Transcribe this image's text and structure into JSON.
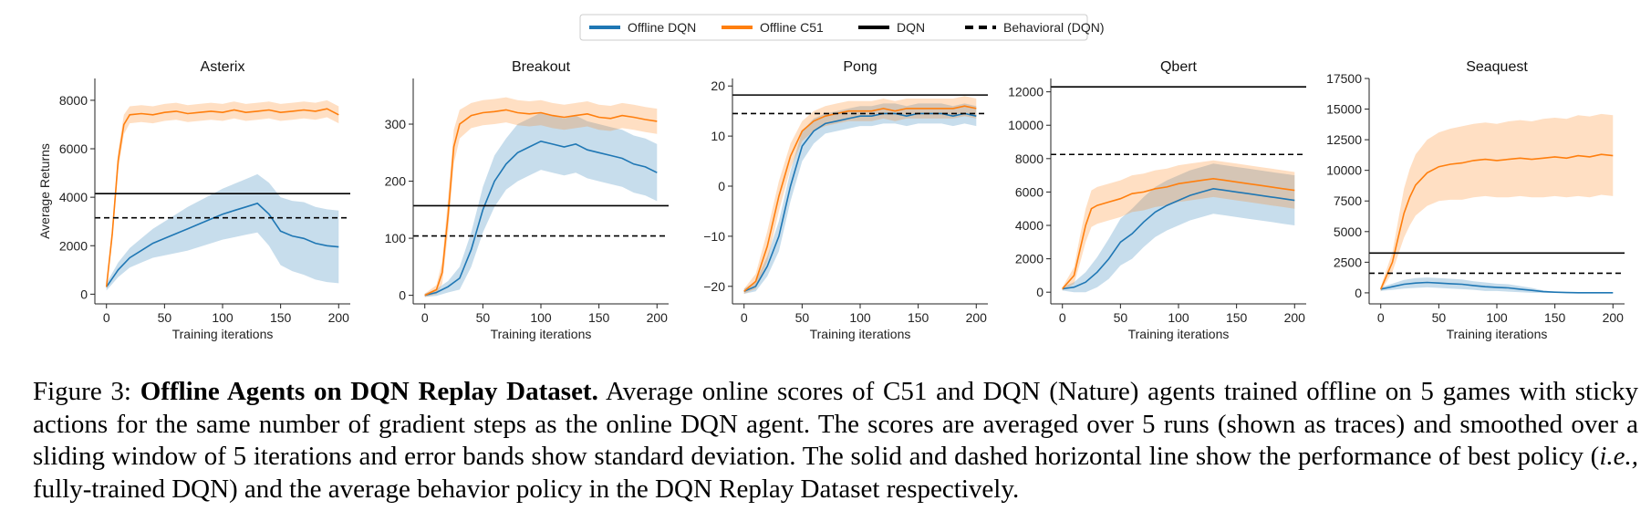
{
  "legend": {
    "entries": [
      {
        "label": "Offline DQN",
        "color": "#1f77b4",
        "style": "solid"
      },
      {
        "label": "Offline C51",
        "color": "#ff7f0e",
        "style": "solid"
      },
      {
        "label": "DQN",
        "color": "#000000",
        "style": "solid"
      },
      {
        "label": "Behavioral (DQN)",
        "color": "#000000",
        "style": "dashed"
      }
    ]
  },
  "caption": {
    "label": "Figure 3:",
    "title": "Offline Agents on DQN Replay Dataset.",
    "body_part1": "Average online scores of C51 and DQN (Nature) agents trained offline on 5 games with sticky actions for the same number of gradient steps as the online DQN agent. The scores are averaged over 5 runs (shown as traces) and smoothed over a sliding window of 5 iterations and error bands show standard deviation. The solid and dashed horizontal line show the performance of best policy (",
    "body_italic": "i.e.,",
    "body_part2": "fully-trained DQN) and the average behavior policy in the DQN Replay Dataset respectively."
  },
  "chart_data": [
    {
      "type": "line",
      "title": "Asterix",
      "xlabel": "Training iterations",
      "ylabel": "Average Returns",
      "xlim": [
        -10,
        210
      ],
      "ylim": [
        -400,
        8900
      ],
      "xticks": [
        0,
        50,
        100,
        150,
        200
      ],
      "yticks": [
        0,
        2000,
        4000,
        6000,
        8000
      ],
      "grid": false,
      "hlines": [
        {
          "name": "DQN",
          "y": 4150,
          "style": "solid"
        },
        {
          "name": "Behavioral (DQN)",
          "y": 3150,
          "style": "dashed"
        }
      ],
      "series": [
        {
          "name": "Offline DQN",
          "color": "#1f77b4",
          "x": [
            0,
            10,
            20,
            30,
            40,
            50,
            60,
            70,
            80,
            90,
            100,
            110,
            120,
            130,
            140,
            150,
            160,
            170,
            180,
            190,
            200
          ],
          "y": [
            300,
            1000,
            1500,
            1800,
            2100,
            2300,
            2500,
            2700,
            2900,
            3100,
            3300,
            3450,
            3600,
            3750,
            3300,
            2600,
            2400,
            2300,
            2100,
            2000,
            1950
          ],
          "band": [
            150,
            300,
            400,
            500,
            600,
            700,
            800,
            900,
            950,
            1000,
            1050,
            1100,
            1150,
            1200,
            1300,
            1400,
            1450,
            1500,
            1500,
            1500,
            1500
          ]
        },
        {
          "name": "Offline C51",
          "color": "#ff7f0e",
          "x": [
            0,
            5,
            10,
            15,
            20,
            30,
            40,
            50,
            60,
            70,
            80,
            90,
            100,
            110,
            120,
            130,
            140,
            150,
            160,
            170,
            180,
            190,
            200
          ],
          "y": [
            300,
            2500,
            5500,
            7000,
            7400,
            7450,
            7400,
            7500,
            7550,
            7450,
            7500,
            7550,
            7500,
            7600,
            7500,
            7550,
            7600,
            7500,
            7550,
            7600,
            7550,
            7650,
            7400
          ],
          "band": [
            100,
            300,
            400,
            400,
            350,
            350,
            350,
            350,
            350,
            350,
            350,
            350,
            350,
            350,
            350,
            350,
            350,
            350,
            350,
            350,
            350,
            350,
            350
          ]
        }
      ]
    },
    {
      "type": "line",
      "title": "Breakout",
      "xlabel": "Training iterations",
      "ylabel": "",
      "xlim": [
        -10,
        210
      ],
      "ylim": [
        -15,
        380
      ],
      "xticks": [
        0,
        50,
        100,
        150,
        200
      ],
      "yticks": [
        0,
        100,
        200,
        300
      ],
      "grid": false,
      "hlines": [
        {
          "name": "DQN",
          "y": 157,
          "style": "solid"
        },
        {
          "name": "Behavioral (DQN)",
          "y": 104,
          "style": "dashed"
        }
      ],
      "series": [
        {
          "name": "Offline DQN",
          "color": "#1f77b4",
          "x": [
            0,
            10,
            20,
            30,
            40,
            50,
            60,
            70,
            80,
            90,
            100,
            110,
            120,
            130,
            140,
            150,
            160,
            170,
            180,
            190,
            200
          ],
          "y": [
            0,
            5,
            15,
            30,
            80,
            150,
            200,
            230,
            250,
            260,
            270,
            265,
            260,
            265,
            255,
            250,
            245,
            240,
            230,
            225,
            215
          ],
          "band": [
            3,
            6,
            10,
            20,
            30,
            40,
            45,
            45,
            50,
            50,
            50,
            50,
            50,
            50,
            50,
            50,
            50,
            50,
            50,
            50,
            50
          ]
        },
        {
          "name": "Offline C51",
          "color": "#ff7f0e",
          "x": [
            0,
            10,
            15,
            20,
            25,
            30,
            40,
            50,
            60,
            70,
            80,
            90,
            100,
            110,
            120,
            130,
            140,
            150,
            160,
            170,
            180,
            190,
            200
          ],
          "y": [
            0,
            10,
            40,
            140,
            260,
            300,
            315,
            320,
            322,
            325,
            320,
            318,
            320,
            315,
            312,
            315,
            318,
            312,
            310,
            315,
            312,
            308,
            305
          ],
          "band": [
            3,
            8,
            20,
            30,
            30,
            25,
            22,
            22,
            22,
            22,
            22,
            22,
            22,
            22,
            22,
            22,
            22,
            22,
            22,
            22,
            22,
            22,
            22
          ]
        }
      ]
    },
    {
      "type": "line",
      "title": "Pong",
      "xlabel": "Training iterations",
      "ylabel": "",
      "xlim": [
        -10,
        210
      ],
      "ylim": [
        -23.5,
        21.5
      ],
      "xticks": [
        0,
        50,
        100,
        150,
        200
      ],
      "yticks": [
        -20,
        -10,
        0,
        10,
        20
      ],
      "grid": false,
      "hlines": [
        {
          "name": "DQN",
          "y": 18.2,
          "style": "solid"
        },
        {
          "name": "Behavioral (DQN)",
          "y": 14.5,
          "style": "dashed"
        }
      ],
      "series": [
        {
          "name": "Offline DQN",
          "color": "#1f77b4",
          "x": [
            0,
            10,
            20,
            30,
            40,
            50,
            60,
            70,
            80,
            90,
            100,
            110,
            120,
            130,
            140,
            150,
            160,
            170,
            180,
            190,
            200
          ],
          "y": [
            -21,
            -20,
            -16,
            -10,
            0,
            8,
            11,
            12.5,
            13,
            13.5,
            14,
            14,
            14.5,
            14.5,
            14,
            14.5,
            14.5,
            14.5,
            14,
            14.5,
            14
          ],
          "band": [
            0.5,
            1,
            2,
            3,
            3,
            3,
            2.5,
            2,
            2,
            2,
            2,
            2,
            2,
            2,
            2,
            2,
            2,
            2,
            2,
            2,
            2
          ]
        },
        {
          "name": "Offline C51",
          "color": "#ff7f0e",
          "x": [
            0,
            10,
            20,
            30,
            40,
            50,
            60,
            70,
            80,
            90,
            100,
            110,
            120,
            130,
            140,
            150,
            160,
            170,
            180,
            190,
            200
          ],
          "y": [
            -21,
            -19,
            -12,
            -2,
            6,
            11,
            13,
            14,
            14.5,
            15,
            15,
            15,
            15.5,
            15,
            15.5,
            15.5,
            15.5,
            15.5,
            15.5,
            16,
            15.5
          ],
          "band": [
            0.5,
            1.5,
            3,
            3,
            2.5,
            2,
            2,
            2,
            2,
            2,
            2,
            2,
            2,
            2,
            2,
            2,
            2,
            2,
            2,
            2,
            2
          ]
        }
      ]
    },
    {
      "type": "line",
      "title": "Qbert",
      "xlabel": "Training iterations",
      "ylabel": "",
      "xlim": [
        -10,
        210
      ],
      "ylim": [
        -700,
        12800
      ],
      "xticks": [
        0,
        50,
        100,
        150,
        200
      ],
      "yticks": [
        0,
        2000,
        4000,
        6000,
        8000,
        10000,
        12000
      ],
      "grid": false,
      "hlines": [
        {
          "name": "DQN",
          "y": 12300,
          "style": "solid"
        },
        {
          "name": "Behavioral (DQN)",
          "y": 8250,
          "style": "dashed"
        }
      ],
      "series": [
        {
          "name": "Offline DQN",
          "color": "#1f77b4",
          "x": [
            0,
            10,
            20,
            30,
            40,
            50,
            60,
            70,
            80,
            90,
            100,
            110,
            120,
            130,
            140,
            150,
            160,
            170,
            180,
            190,
            200
          ],
          "y": [
            200,
            300,
            600,
            1200,
            2000,
            3000,
            3500,
            4200,
            4800,
            5200,
            5500,
            5800,
            6000,
            6200,
            6100,
            6000,
            5900,
            5800,
            5700,
            5600,
            5500
          ],
          "band": [
            100,
            300,
            600,
            900,
            1200,
            1400,
            1500,
            1500,
            1500,
            1500,
            1500,
            1500,
            1500,
            1500,
            1500,
            1500,
            1500,
            1500,
            1500,
            1500,
            1500
          ]
        },
        {
          "name": "Offline C51",
          "color": "#ff7f0e",
          "x": [
            0,
            10,
            15,
            20,
            25,
            30,
            40,
            50,
            60,
            70,
            80,
            90,
            100,
            110,
            120,
            130,
            140,
            150,
            160,
            170,
            180,
            190,
            200
          ],
          "y": [
            200,
            1000,
            2500,
            4000,
            5000,
            5200,
            5400,
            5600,
            5900,
            6000,
            6200,
            6300,
            6500,
            6600,
            6700,
            6800,
            6700,
            6600,
            6500,
            6400,
            6300,
            6200,
            6100
          ],
          "band": [
            100,
            500,
            800,
            1000,
            1100,
            1100,
            1100,
            1100,
            1100,
            1100,
            1100,
            1100,
            1100,
            1100,
            1100,
            1100,
            1100,
            1100,
            1100,
            1100,
            1100,
            1100,
            1100
          ]
        }
      ]
    },
    {
      "type": "line",
      "title": "Seaquest",
      "xlabel": "Training iterations",
      "ylabel": "",
      "xlim": [
        -10,
        210
      ],
      "ylim": [
        -900,
        17500
      ],
      "xticks": [
        0,
        50,
        100,
        150,
        200
      ],
      "yticks": [
        0,
        2500,
        5000,
        7500,
        10000,
        12500,
        15000,
        17500
      ],
      "grid": false,
      "hlines": [
        {
          "name": "DQN",
          "y": 3250,
          "style": "solid"
        },
        {
          "name": "Behavioral (DQN)",
          "y": 1600,
          "style": "dashed"
        }
      ],
      "series": [
        {
          "name": "Offline DQN",
          "color": "#1f77b4",
          "x": [
            0,
            10,
            20,
            30,
            40,
            50,
            60,
            70,
            80,
            90,
            100,
            110,
            120,
            130,
            140,
            150,
            160,
            170,
            180,
            190,
            200
          ],
          "y": [
            300,
            500,
            700,
            800,
            850,
            800,
            750,
            700,
            600,
            500,
            450,
            400,
            300,
            200,
            100,
            50,
            20,
            10,
            10,
            10,
            10
          ],
          "band": [
            150,
            250,
            350,
            400,
            400,
            400,
            400,
            400,
            350,
            350,
            300,
            300,
            250,
            200,
            100,
            50,
            30,
            20,
            20,
            20,
            20
          ]
        },
        {
          "name": "Offline C51",
          "color": "#ff7f0e",
          "x": [
            0,
            10,
            15,
            20,
            25,
            30,
            40,
            50,
            60,
            70,
            80,
            90,
            100,
            110,
            120,
            130,
            140,
            150,
            160,
            170,
            180,
            190,
            200
          ],
          "y": [
            300,
            2500,
            4500,
            6500,
            7800,
            8800,
            9800,
            10300,
            10500,
            10600,
            10800,
            10900,
            10800,
            10900,
            11000,
            10900,
            11000,
            11100,
            11000,
            11200,
            11100,
            11300,
            11200
          ],
          "band": [
            200,
            800,
            1400,
            2000,
            2300,
            2500,
            2700,
            2800,
            2900,
            3000,
            3000,
            3000,
            3000,
            3100,
            3100,
            3100,
            3200,
            3200,
            3200,
            3300,
            3300,
            3300,
            3300
          ]
        }
      ]
    }
  ]
}
